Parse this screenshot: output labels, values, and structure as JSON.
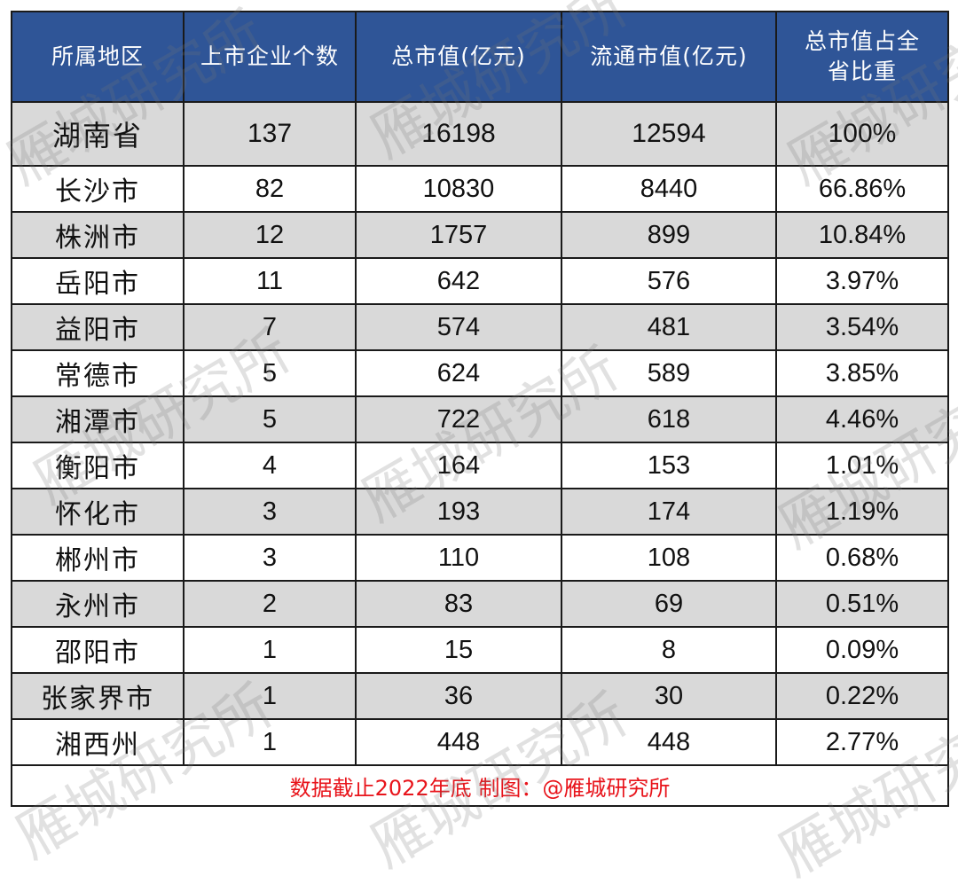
{
  "table": {
    "headers": [
      "所属地区",
      "上市企业个数",
      "总市值(亿元)",
      "流通市值(亿元)",
      "总市值占全\n省比重"
    ],
    "header_lines": {
      "col5_line1": "总市值占全",
      "col5_line2": "省比重"
    },
    "rows": [
      {
        "region": "湖南省",
        "count": "137",
        "total_cap": "16198",
        "float_cap": "12594",
        "share": "100%"
      },
      {
        "region": "长沙市",
        "count": "82",
        "total_cap": "10830",
        "float_cap": "8440",
        "share": "66.86%"
      },
      {
        "region": "株洲市",
        "count": "12",
        "total_cap": "1757",
        "float_cap": "899",
        "share": "10.84%"
      },
      {
        "region": "岳阳市",
        "count": "11",
        "total_cap": "642",
        "float_cap": "576",
        "share": "3.97%"
      },
      {
        "region": "益阳市",
        "count": "7",
        "total_cap": "574",
        "float_cap": "481",
        "share": "3.54%"
      },
      {
        "region": "常德市",
        "count": "5",
        "total_cap": "624",
        "float_cap": "589",
        "share": "3.85%"
      },
      {
        "region": "湘潭市",
        "count": "5",
        "total_cap": "722",
        "float_cap": "618",
        "share": "4.46%"
      },
      {
        "region": "衡阳市",
        "count": "4",
        "total_cap": "164",
        "float_cap": "153",
        "share": "1.01%"
      },
      {
        "region": "怀化市",
        "count": "3",
        "total_cap": "193",
        "float_cap": "174",
        "share": "1.19%"
      },
      {
        "region": "郴州市",
        "count": "3",
        "total_cap": "110",
        "float_cap": "108",
        "share": "0.68%"
      },
      {
        "region": "永州市",
        "count": "2",
        "total_cap": "83",
        "float_cap": "69",
        "share": "0.51%"
      },
      {
        "region": "邵阳市",
        "count": "1",
        "total_cap": "15",
        "float_cap": "8",
        "share": "0.09%"
      },
      {
        "region": "张家界市",
        "count": "1",
        "total_cap": "36",
        "float_cap": "30",
        "share": "0.22%"
      },
      {
        "region": "湘西州",
        "count": "1",
        "total_cap": "448",
        "float_cap": "448",
        "share": "2.77%"
      }
    ],
    "footer": "数据截止2022年底 制图：@雁城研究所"
  },
  "watermark": "雁城研究所",
  "colors": {
    "header_bg": "#2f5597",
    "header_text": "#ffffff",
    "shade_row": "#d9d9d9",
    "footer_text": "#e8141b",
    "border": "#1a1a1a"
  }
}
